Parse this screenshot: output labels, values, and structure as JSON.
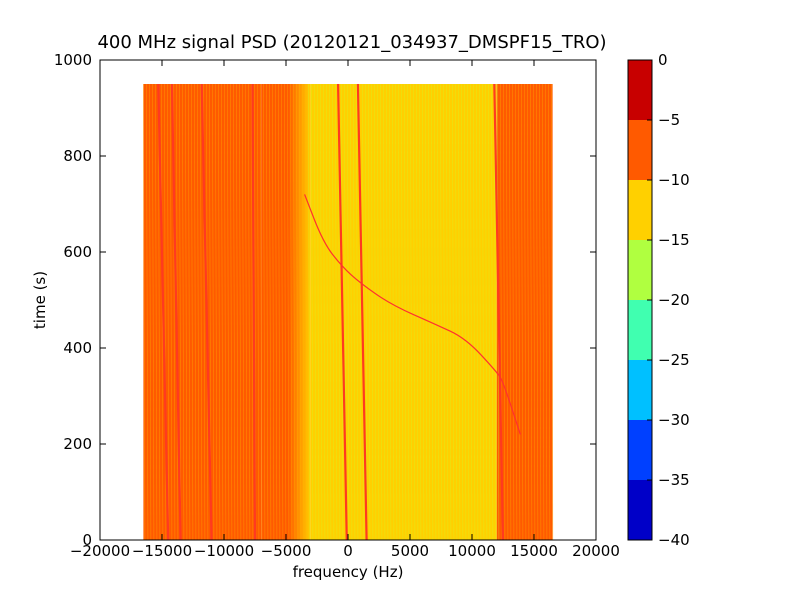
{
  "chart_data": {
    "type": "heatmap",
    "title": "400 MHz signal PSD (20120121_034937_DMSPF15_TRO)",
    "xlabel": "frequency (Hz)",
    "ylabel": "time (s)",
    "xlim": [
      -20000,
      20000
    ],
    "ylim": [
      0,
      1000
    ],
    "xticks": [
      -20000,
      -15000,
      -10000,
      -5000,
      0,
      5000,
      10000,
      15000,
      20000
    ],
    "yticks": [
      0,
      200,
      400,
      600,
      800,
      1000
    ],
    "data_extent": {
      "x": [
        -16500,
        16500
      ],
      "y": [
        0,
        950
      ]
    },
    "colorbar": {
      "levels": [
        -40,
        -35,
        -30,
        -25,
        -20,
        -15,
        -10,
        -5,
        0
      ],
      "tick_labels": [
        "-40",
        "-35",
        "-30",
        "-25",
        "-20",
        "-15",
        "-10",
        "-5",
        "0"
      ],
      "colors": [
        "#0000c8",
        "#0040ff",
        "#00c0ff",
        "#40ffb0",
        "#b0ff40",
        "#ffd000",
        "#ff5a00",
        "#c80000"
      ]
    },
    "regions": [
      {
        "x": [
          -16500,
          -15000
        ],
        "level": -10
      },
      {
        "x": [
          -15000,
          -10000
        ],
        "level": -10
      },
      {
        "x": [
          -10000,
          -7000
        ],
        "level": -10
      },
      {
        "x": [
          -7000,
          -3000
        ],
        "level": -10,
        "gradient_to": -15
      },
      {
        "x": [
          -3000,
          12000
        ],
        "level": -15
      },
      {
        "x": [
          12000,
          16500
        ],
        "level": -10
      }
    ],
    "carrier_lines": [
      {
        "x_start": -14500,
        "x_end": -15300
      },
      {
        "x_start": -13500,
        "x_end": -14200
      },
      {
        "x_start": -11000,
        "x_end": -11800
      },
      {
        "x_start": -7500,
        "x_end": -7700
      },
      {
        "x_start": -100,
        "x_end": -800
      },
      {
        "x_start": 1500,
        "x_end": 800
      },
      {
        "x_start": 12500,
        "x_end": 11800
      }
    ],
    "doppler_curve": {
      "points": [
        [
          13900,
          220
        ],
        [
          12500,
          330
        ],
        [
          12000,
          350
        ],
        [
          9500,
          420
        ],
        [
          7000,
          450
        ],
        [
          3500,
          490
        ],
        [
          1000,
          535
        ],
        [
          -500,
          570
        ],
        [
          -2000,
          620
        ],
        [
          -3500,
          720
        ]
      ]
    }
  }
}
